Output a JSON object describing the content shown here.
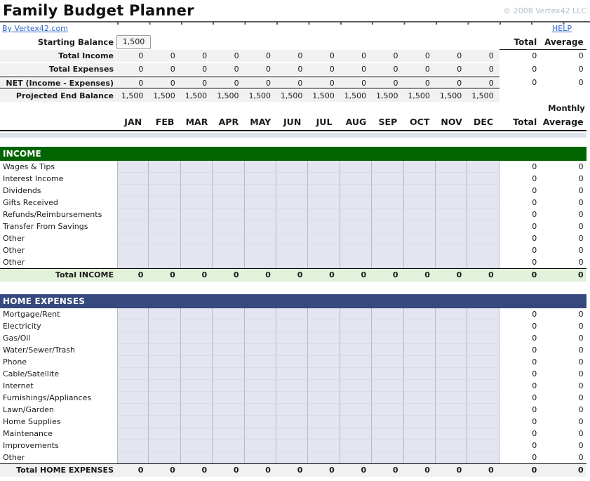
{
  "header": {
    "title": "Family Budget Planner",
    "copyright": "© 2008 Vertex42 LLC",
    "byline": "By Vertex42.com",
    "help": "HELP"
  },
  "colors": {
    "link": "#3366CC",
    "income_bar": "#006400",
    "expenses_bar": "#35497E",
    "income_total_bg": "#E2F1DA",
    "expenses_total_bg": "#F1F1F1",
    "input_cell_bg": "#E3E5F0"
  },
  "summary": {
    "starting_balance_label": "Starting Balance",
    "starting_balance_value": "1,500",
    "total_label": "Total",
    "average_label": "Average",
    "rows": [
      {
        "label": "Total Income",
        "values": [
          "0",
          "0",
          "0",
          "0",
          "0",
          "0",
          "0",
          "0",
          "0",
          "0",
          "0",
          "0"
        ],
        "total": "0",
        "average": "0"
      },
      {
        "label": "Total Expenses",
        "values": [
          "0",
          "0",
          "0",
          "0",
          "0",
          "0",
          "0",
          "0",
          "0",
          "0",
          "0",
          "0"
        ],
        "total": "0",
        "average": "0"
      },
      {
        "label": "NET (Income - Expenses)",
        "values": [
          "0",
          "0",
          "0",
          "0",
          "0",
          "0",
          "0",
          "0",
          "0",
          "0",
          "0",
          "0"
        ],
        "total": "0",
        "average": "0"
      },
      {
        "label": "Projected End Balance",
        "values": [
          "1,500",
          "1,500",
          "1,500",
          "1,500",
          "1,500",
          "1,500",
          "1,500",
          "1,500",
          "1,500",
          "1,500",
          "1,500",
          "1,500"
        ],
        "total": "",
        "average": ""
      }
    ]
  },
  "table_header": {
    "months": [
      "JAN",
      "FEB",
      "MAR",
      "APR",
      "MAY",
      "JUN",
      "JUL",
      "AUG",
      "SEP",
      "OCT",
      "NOV",
      "DEC"
    ],
    "total_label": "Total",
    "monthly_label": "Monthly",
    "average_label": "Average"
  },
  "sections": [
    {
      "title": "INCOME",
      "bar_color": "#006400",
      "rows": [
        {
          "label": "Wages & Tips",
          "total": "0",
          "average": "0"
        },
        {
          "label": "Interest Income",
          "total": "0",
          "average": "0"
        },
        {
          "label": "Dividends",
          "total": "0",
          "average": "0"
        },
        {
          "label": "Gifts Received",
          "total": "0",
          "average": "0"
        },
        {
          "label": "Refunds/Reimbursements",
          "total": "0",
          "average": "0"
        },
        {
          "label": "Transfer From Savings",
          "total": "0",
          "average": "0"
        },
        {
          "label": "Other",
          "total": "0",
          "average": "0"
        },
        {
          "label": "Other",
          "total": "0",
          "average": "0"
        },
        {
          "label": "Other",
          "total": "0",
          "average": "0"
        }
      ],
      "total_row": {
        "label": "Total INCOME",
        "values": [
          "0",
          "0",
          "0",
          "0",
          "0",
          "0",
          "0",
          "0",
          "0",
          "0",
          "0",
          "0"
        ],
        "total": "0",
        "average": "0",
        "bg": "#E2F1DA"
      }
    },
    {
      "title": "HOME EXPENSES",
      "bar_color": "#35497E",
      "rows": [
        {
          "label": "Mortgage/Rent",
          "total": "0",
          "average": "0"
        },
        {
          "label": "Electricity",
          "total": "0",
          "average": "0"
        },
        {
          "label": "Gas/Oil",
          "total": "0",
          "average": "0"
        },
        {
          "label": "Water/Sewer/Trash",
          "total": "0",
          "average": "0"
        },
        {
          "label": "Phone",
          "total": "0",
          "average": "0"
        },
        {
          "label": "Cable/Satellite",
          "total": "0",
          "average": "0"
        },
        {
          "label": "Internet",
          "total": "0",
          "average": "0"
        },
        {
          "label": "Furnishings/Appliances",
          "total": "0",
          "average": "0"
        },
        {
          "label": "Lawn/Garden",
          "total": "0",
          "average": "0"
        },
        {
          "label": "Home Supplies",
          "total": "0",
          "average": "0"
        },
        {
          "label": "Maintenance",
          "total": "0",
          "average": "0"
        },
        {
          "label": "Improvements",
          "total": "0",
          "average": "0"
        },
        {
          "label": "Other",
          "total": "0",
          "average": "0"
        }
      ],
      "total_row": {
        "label": "Total HOME EXPENSES",
        "values": [
          "0",
          "0",
          "0",
          "0",
          "0",
          "0",
          "0",
          "0",
          "0",
          "0",
          "0",
          "0"
        ],
        "total": "0",
        "average": "0",
        "bg": "#F1F1F1"
      }
    }
  ]
}
